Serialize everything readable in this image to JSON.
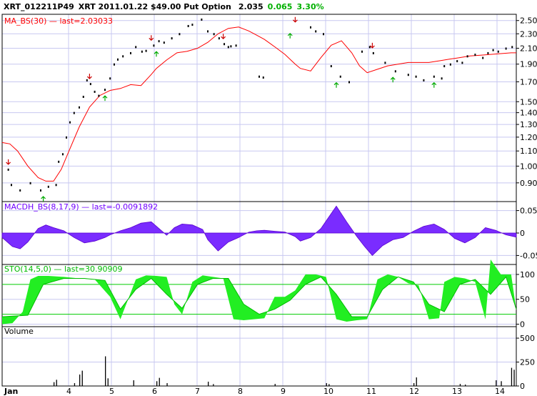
{
  "header": {
    "symbol": "XRT_012211P49",
    "description": "XRT 2011.01.22 $49.00 Put Option",
    "last": "2.035",
    "change": "0.065",
    "change_pct": "3.30%",
    "up_color": "#00b000"
  },
  "panels": {
    "price": {
      "label": "MA_BS(30)",
      "last_text": "last=2.03033",
      "color": "#ff0000"
    },
    "macd": {
      "label": "MACDH_BS(8,17,9)",
      "last_text": "last=-0.0091892",
      "color": "#7000ff"
    },
    "sto": {
      "label": "STO(14,5,0)",
      "last_text": "last=30.90909",
      "color": "#00dd00"
    },
    "volume": {
      "label": "Volume"
    }
  },
  "chart_data": [
    {
      "type": "line",
      "panel": "price",
      "x_axis": {
        "ticks": [
          "Jan",
          "4",
          "5",
          "6",
          "7",
          "8",
          "9",
          "10",
          "11",
          "12",
          "13",
          "14"
        ],
        "range": [
          0,
          10
        ],
        "grid": true
      },
      "y_axis": {
        "ticks": [
          0.9,
          1.0,
          1.1,
          1.2,
          1.3,
          1.4,
          1.5,
          1.7,
          1.9,
          2.1,
          2.3,
          2.5
        ],
        "scale": "log",
        "range": [
          0.8,
          2.6
        ],
        "grid": true
      },
      "series": [
        {
          "name": "MA_BS(30)",
          "x": [
            0,
            0.15,
            0.3,
            0.5,
            0.7,
            0.85,
            1.0,
            1.15,
            1.3,
            1.5,
            1.7,
            1.9,
            2.1,
            2.3,
            2.5,
            2.7,
            2.9,
            3.0,
            3.2,
            3.4,
            3.6,
            3.8,
            4.0,
            4.2,
            4.4,
            4.6,
            4.8,
            4.95,
            5.1,
            5.3,
            5.5,
            5.7,
            5.8,
            6.0,
            6.2,
            6.4,
            6.6,
            6.8,
            6.95,
            7.1,
            7.3,
            7.5,
            7.7,
            7.9,
            8.1,
            8.3,
            8.5,
            8.7,
            8.9,
            9.1,
            9.3,
            9.5,
            9.7,
            9.9,
            10.0
          ],
          "values": [
            1.16,
            1.15,
            1.1,
            1.0,
            0.93,
            0.91,
            0.91,
            0.98,
            1.1,
            1.28,
            1.45,
            1.56,
            1.61,
            1.63,
            1.67,
            1.66,
            1.78,
            1.85,
            1.95,
            2.04,
            2.06,
            2.1,
            2.18,
            2.3,
            2.38,
            2.4,
            2.34,
            2.28,
            2.22,
            2.12,
            2.02,
            1.9,
            1.85,
            1.82,
            1.98,
            2.14,
            2.2,
            2.04,
            1.88,
            1.8,
            1.84,
            1.88,
            1.9,
            1.92,
            1.92,
            1.92,
            1.94,
            1.96,
            1.98,
            2.0,
            2.01,
            2.02,
            2.03,
            2.04,
            2.04
          ]
        },
        {
          "name": "price",
          "type": "scatter",
          "x": [
            0.12,
            0.18,
            0.35,
            0.55,
            0.75,
            0.9,
            1.05,
            1.1,
            1.18,
            1.25,
            1.32,
            1.4,
            1.5,
            1.58,
            1.65,
            1.72,
            1.8,
            1.88,
            2.0,
            2.1,
            2.18,
            2.25,
            2.35,
            2.5,
            2.6,
            2.72,
            2.8,
            2.95,
            3.05,
            3.15,
            3.3,
            3.45,
            3.62,
            3.7,
            3.88,
            4.0,
            4.12,
            4.22,
            4.32,
            4.4,
            4.45,
            4.55,
            5.0,
            5.08,
            6.0,
            6.1,
            6.25,
            6.4,
            6.58,
            6.75,
            7.0,
            7.15,
            7.22,
            7.45,
            7.65,
            7.9,
            8.05,
            8.2,
            8.4,
            8.55,
            8.6,
            8.72,
            8.85,
            8.95,
            9.05,
            9.2,
            9.35,
            9.45,
            9.55,
            9.65,
            9.8,
            9.92
          ],
          "values": [
            0.98,
            0.89,
            0.86,
            0.9,
            0.86,
            0.88,
            0.89,
            1.03,
            1.08,
            1.2,
            1.32,
            1.4,
            1.45,
            1.55,
            1.72,
            1.68,
            1.6,
            1.56,
            1.62,
            1.74,
            1.9,
            1.96,
            2.0,
            2.04,
            2.12,
            2.06,
            2.07,
            2.14,
            2.2,
            2.18,
            2.24,
            2.3,
            2.42,
            2.44,
            2.52,
            2.34,
            2.3,
            2.24,
            2.16,
            2.12,
            2.13,
            2.14,
            1.76,
            1.75,
            2.4,
            2.34,
            2.3,
            1.88,
            1.76,
            1.7,
            2.06,
            2.12,
            2.04,
            1.92,
            1.82,
            1.78,
            1.76,
            1.72,
            1.76,
            1.74,
            1.88,
            1.9,
            1.94,
            1.92,
            2.0,
            2.02,
            1.98,
            2.04,
            2.08,
            2.06,
            2.1,
            2.12
          ]
        }
      ],
      "annotations": {
        "sell_arrows_x": [
          0.12,
          1.7,
          2.9,
          4.3,
          5.7,
          7.2
        ],
        "buy_arrows_x": [
          0.8,
          2.0,
          3.0,
          5.6,
          6.5,
          7.6,
          8.4
        ]
      }
    },
    {
      "type": "area",
      "panel": "macd",
      "y_axis": {
        "ticks": [
          0.05,
          0,
          -0.05
        ],
        "range": [
          -0.07,
          0.07
        ],
        "grid": true
      },
      "series": [
        {
          "name": "MACDH_BS(8,17,9)",
          "x": [
            0,
            0.2,
            0.35,
            0.5,
            0.7,
            0.85,
            1.0,
            1.2,
            1.4,
            1.6,
            1.8,
            2.0,
            2.1,
            2.3,
            2.5,
            2.7,
            2.9,
            3.05,
            3.2,
            3.35,
            3.5,
            3.7,
            3.9,
            4.0,
            4.2,
            4.4,
            4.6,
            4.8,
            4.95,
            5.1,
            5.3,
            5.5,
            5.7,
            5.8,
            6.0,
            6.2,
            6.35,
            6.5,
            6.7,
            6.9,
            7.05,
            7.2,
            7.4,
            7.6,
            7.8,
            8.0,
            8.2,
            8.4,
            8.6,
            8.8,
            9.0,
            9.2,
            9.4,
            9.6,
            9.8,
            10.0
          ],
          "values": [
            -0.01,
            -0.03,
            -0.035,
            -0.02,
            0.01,
            0.018,
            0.012,
            0.005,
            -0.01,
            -0.022,
            -0.018,
            -0.01,
            -0.004,
            0.005,
            0.012,
            0.022,
            0.025,
            0.01,
            -0.005,
            0.012,
            0.02,
            0.018,
            0.008,
            -0.015,
            -0.04,
            -0.02,
            -0.01,
            0.002,
            0.005,
            0.006,
            0.004,
            0.002,
            -0.008,
            -0.018,
            -0.01,
            0.01,
            0.035,
            0.06,
            0.025,
            -0.008,
            -0.03,
            -0.05,
            -0.028,
            -0.015,
            -0.01,
            0.004,
            0.015,
            0.02,
            0.008,
            -0.012,
            -0.022,
            -0.01,
            0.012,
            0.006,
            -0.004,
            -0.009
          ]
        }
      ]
    },
    {
      "type": "area",
      "panel": "sto",
      "y_axis": {
        "ticks": [
          100,
          50,
          0
        ],
        "range": [
          -5,
          120
        ],
        "grid": true,
        "reference_lines": [
          80,
          20
        ]
      },
      "series": [
        {
          "name": "STO(14,5,0) %K",
          "x": [
            0,
            0.2,
            0.4,
            0.55,
            0.7,
            0.9,
            1.2,
            1.5,
            1.8,
            2.1,
            2.3,
            2.6,
            2.8,
            3.0,
            3.2,
            3.35,
            3.5,
            3.7,
            3.9,
            4.1,
            4.3,
            4.5,
            4.7,
            4.9,
            5.1,
            5.3,
            5.5,
            5.7,
            5.9,
            6.1,
            6.3,
            6.5,
            6.7,
            6.9,
            7.1,
            7.3,
            7.5,
            7.7,
            7.9,
            8.1,
            8.3,
            8.5,
            8.6,
            8.8,
            9.0,
            9.2,
            9.4,
            9.5,
            9.7,
            9.9,
            10.0
          ],
          "values": [
            0,
            2,
            25,
            90,
            97,
            97,
            95,
            92,
            90,
            55,
            10,
            90,
            98,
            97,
            95,
            40,
            20,
            85,
            98,
            95,
            92,
            10,
            8,
            10,
            12,
            55,
            55,
            68,
            100,
            100,
            95,
            10,
            5,
            8,
            10,
            90,
            100,
            95,
            82,
            78,
            10,
            12,
            85,
            95,
            92,
            85,
            10,
            130,
            100,
            100,
            28
          ]
        },
        {
          "name": "STO(14,5,0) %D",
          "x": [
            0,
            0.5,
            0.8,
            1.2,
            1.6,
            2.0,
            2.3,
            2.6,
            2.9,
            3.2,
            3.5,
            3.8,
            4.1,
            4.4,
            4.7,
            5.0,
            5.3,
            5.6,
            5.9,
            6.2,
            6.5,
            6.8,
            7.1,
            7.4,
            7.7,
            8.0,
            8.3,
            8.6,
            8.9,
            9.2,
            9.5,
            9.8,
            10.0
          ],
          "values": [
            15,
            18,
            80,
            92,
            92,
            88,
            30,
            70,
            92,
            60,
            32,
            80,
            92,
            92,
            40,
            20,
            30,
            48,
            80,
            95,
            60,
            15,
            15,
            70,
            95,
            85,
            40,
            25,
            80,
            90,
            60,
            95,
            30
          ]
        }
      ]
    },
    {
      "type": "bar",
      "panel": "volume",
      "y_axis": {
        "ticks": [
          500,
          250,
          0
        ],
        "range": [
          0,
          620
        ],
        "grid": true
      },
      "x": [
        1.0,
        1.05,
        1.4,
        1.5,
        1.55,
        2.0,
        2.05,
        2.55,
        3.0,
        3.05,
        3.2,
        4.0,
        4.1,
        5.3,
        6.3,
        6.35,
        8.0,
        8.05,
        8.9,
        9.0,
        9.6,
        9.7,
        9.9,
        9.95
      ],
      "values": [
        40,
        65,
        30,
        120,
        160,
        310,
        80,
        60,
        50,
        85,
        30,
        45,
        20,
        22,
        30,
        20,
        30,
        90,
        22,
        15,
        60,
        50,
        190,
        170
      ]
    }
  ]
}
